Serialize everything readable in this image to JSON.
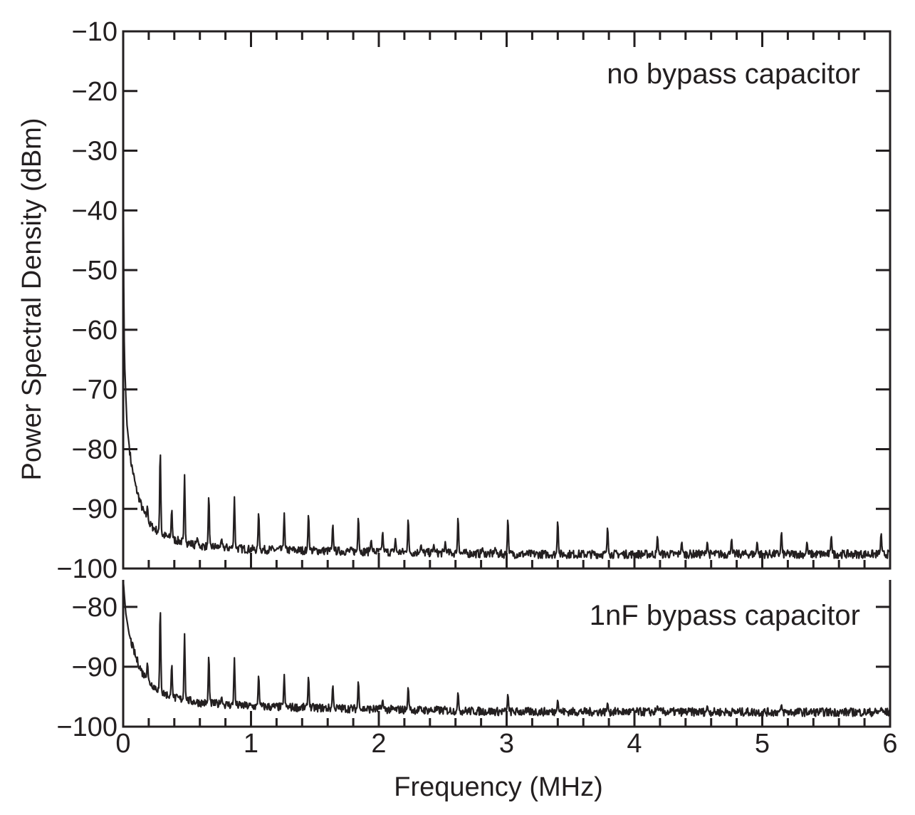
{
  "chart_data": [
    {
      "type": "line",
      "panel": "top",
      "annotation": "no bypass capacitor",
      "ylabel": "Power Spectral Density (dBm)",
      "xlabel": "Frequency (MHz)",
      "xlim": [
        0,
        6
      ],
      "ylim": [
        -100,
        -10
      ],
      "yticks": [
        "−10",
        "−20",
        "−30",
        "−40",
        "−50",
        "−60",
        "−70",
        "−80",
        "−90",
        "−100"
      ],
      "ytick_values": [
        -10,
        -20,
        -30,
        -40,
        -50,
        -60,
        -70,
        -80,
        -90,
        -100
      ],
      "baseline": [
        [
          0,
          -30
        ],
        [
          0.003,
          -50
        ],
        [
          0.01,
          -65
        ],
        [
          0.03,
          -76
        ],
        [
          0.06,
          -82
        ],
        [
          0.1,
          -86.5
        ],
        [
          0.15,
          -90
        ],
        [
          0.2,
          -92.5
        ],
        [
          0.3,
          -94.3
        ],
        [
          0.4,
          -95.2
        ],
        [
          0.6,
          -96.2
        ],
        [
          1.0,
          -96.8
        ],
        [
          2.0,
          -97.2
        ],
        [
          3.0,
          -97.6
        ],
        [
          6.0,
          -97.6
        ]
      ],
      "peaks": [
        [
          0.19,
          -89.5
        ],
        [
          0.29,
          -80.2
        ],
        [
          0.38,
          -90
        ],
        [
          0.48,
          -84.3
        ],
        [
          0.58,
          -94.8
        ],
        [
          0.67,
          -87.7
        ],
        [
          0.77,
          -95
        ],
        [
          0.87,
          -88
        ],
        [
          1.06,
          -90.5
        ],
        [
          1.26,
          -90.7
        ],
        [
          1.45,
          -90.8
        ],
        [
          1.64,
          -92.5
        ],
        [
          1.84,
          -91.3
        ],
        [
          1.94,
          -95.2
        ],
        [
          2.03,
          -93.8
        ],
        [
          2.13,
          -95
        ],
        [
          2.23,
          -91.6
        ],
        [
          2.33,
          -96
        ],
        [
          2.43,
          -96
        ],
        [
          2.52,
          -95.5
        ],
        [
          2.62,
          -91.3
        ],
        [
          2.81,
          -96.5
        ],
        [
          2.91,
          -96.5
        ],
        [
          3.01,
          -91.6
        ],
        [
          3.4,
          -91.9
        ],
        [
          3.79,
          -93
        ],
        [
          4.18,
          -94.5
        ],
        [
          4.37,
          -95.5
        ],
        [
          4.57,
          -95.5
        ],
        [
          4.76,
          -95
        ],
        [
          4.96,
          -95.5
        ],
        [
          5.15,
          -93.8
        ],
        [
          5.35,
          -95.5
        ],
        [
          5.54,
          -94.5
        ],
        [
          5.93,
          -94
        ]
      ]
    },
    {
      "type": "line",
      "panel": "bottom",
      "annotation": "1nF bypass capacitor",
      "xlabel": "Frequency (MHz)",
      "xlim": [
        0,
        6
      ],
      "ylim": [
        -100,
        -75.5
      ],
      "yticks": [
        "−80",
        "−90",
        "−100"
      ],
      "ytick_values": [
        -80,
        -90,
        -100
      ],
      "xticks": [
        "0",
        "1",
        "2",
        "3",
        "4",
        "5",
        "6"
      ],
      "xtick_values": [
        0,
        1,
        2,
        3,
        4,
        5,
        6
      ],
      "baseline": [
        [
          0,
          -75.5
        ],
        [
          0.02,
          -81
        ],
        [
          0.05,
          -85
        ],
        [
          0.1,
          -88.5
        ],
        [
          0.15,
          -91
        ],
        [
          0.2,
          -92.5
        ],
        [
          0.3,
          -94.3
        ],
        [
          0.4,
          -95.2
        ],
        [
          0.6,
          -96
        ],
        [
          1.0,
          -96.6
        ],
        [
          2.0,
          -97.1
        ],
        [
          3.0,
          -97.5
        ],
        [
          6.0,
          -97.6
        ]
      ],
      "peaks": [
        [
          0.19,
          -89.3
        ],
        [
          0.29,
          -80.2
        ],
        [
          0.38,
          -89.5
        ],
        [
          0.48,
          -84.5
        ],
        [
          0.67,
          -88
        ],
        [
          0.77,
          -95
        ],
        [
          0.87,
          -88.5
        ],
        [
          1.06,
          -91.3
        ],
        [
          1.26,
          -91.3
        ],
        [
          1.45,
          -91.5
        ],
        [
          1.64,
          -93
        ],
        [
          1.84,
          -92.3
        ],
        [
          2.03,
          -95.5
        ],
        [
          2.23,
          -93.3
        ],
        [
          2.62,
          -94.2
        ],
        [
          3.01,
          -94.5
        ],
        [
          3.4,
          -95.5
        ],
        [
          3.79,
          -96
        ],
        [
          4.18,
          -96.5
        ],
        [
          4.57,
          -96.5
        ],
        [
          5.15,
          -96.3
        ],
        [
          5.93,
          -96.8
        ]
      ]
    }
  ]
}
